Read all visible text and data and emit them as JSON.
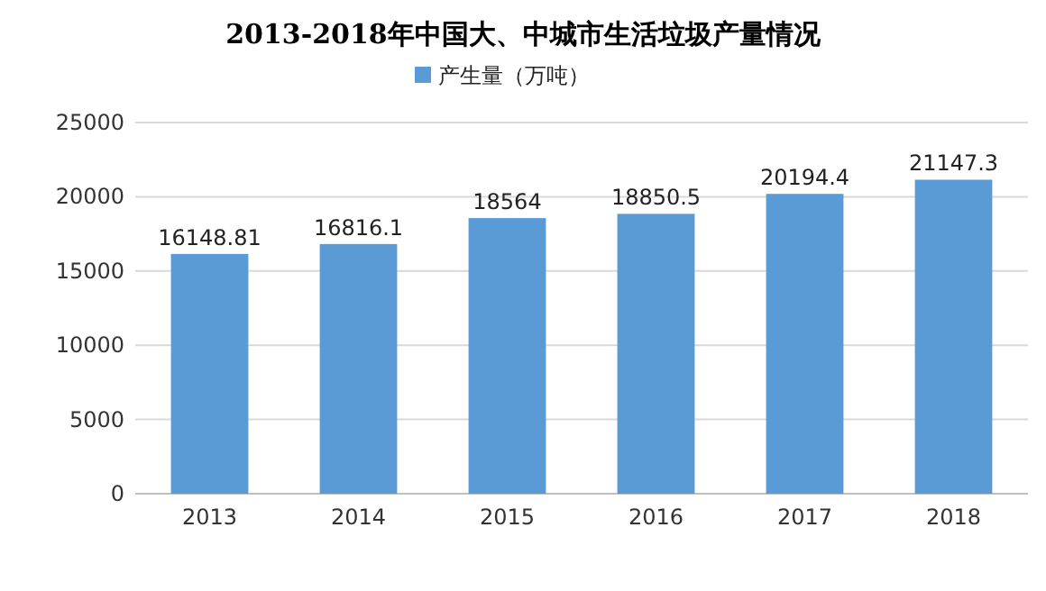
{
  "chart_data": {
    "type": "bar",
    "title": "2013-2018年中国大、中城市生活垃圾产量情况",
    "categories": [
      "2013",
      "2014",
      "2015",
      "2016",
      "2017",
      "2018"
    ],
    "series": [
      {
        "name": "产生量（万吨）",
        "color": "#5b9bd5",
        "values": [
          16148.81,
          16816.1,
          18564,
          18850.5,
          20194.4,
          21147.3
        ]
      }
    ],
    "ylim": [
      0,
      25000
    ],
    "yticks": [
      0,
      5000,
      10000,
      15000,
      20000,
      25000
    ],
    "grid": "y",
    "legend": "top",
    "data_labels": true
  }
}
